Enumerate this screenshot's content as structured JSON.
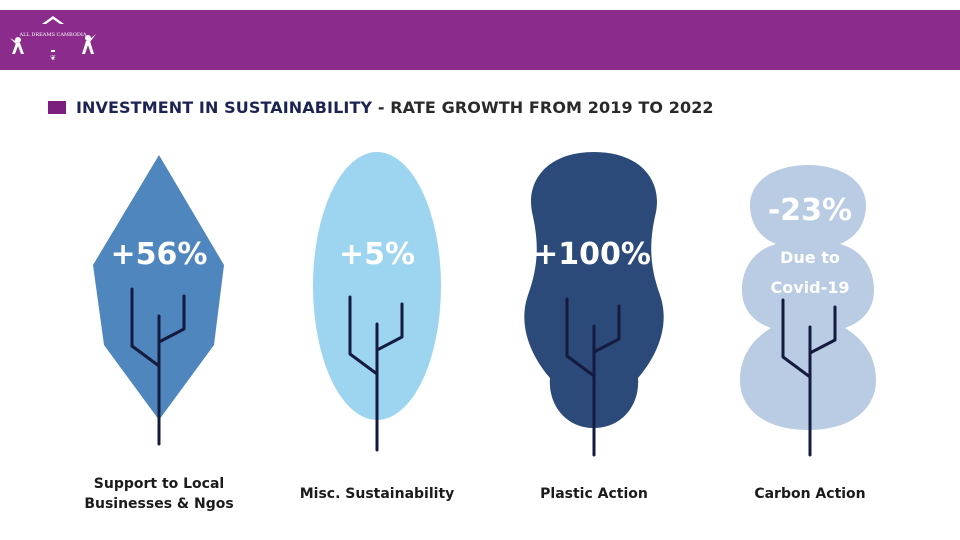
{
  "header": {
    "logo_text": "ALL DREAMS CAMBODIA"
  },
  "title": {
    "main": "INVESTMENT IN SUSTAINABILITY",
    "separator": " - ",
    "rest": "RATE GROWTH FROM 2019 TO 2022"
  },
  "colors": {
    "header": "#8b2b8c",
    "trunk": "#151b3f",
    "leaf_support": "#4f86be",
    "leaf_misc": "#9dd4f0",
    "leaf_plastic": "#2b4a7a",
    "leaf_carbon": "#b9cce3"
  },
  "chart_data": {
    "type": "bar",
    "title": "INVESTMENT IN SUSTAINABILITY - RATE GROWTH FROM 2019 TO 2022",
    "categories": [
      "Support to Local Businesses & Ngos",
      "Misc. Sustainability",
      "Plastic Action",
      "Carbon Action"
    ],
    "category_lines": [
      [
        "Support to Local",
        "Businesses & Ngos"
      ],
      [
        "Misc. Sustainability"
      ],
      [
        "Plastic Action"
      ],
      [
        "Carbon Action"
      ]
    ],
    "values": [
      56,
      5,
      100,
      -23
    ],
    "value_labels": [
      "+56%",
      "+5%",
      "+100%",
      "-23%"
    ],
    "notes": [
      "",
      "",
      "",
      "Due to Covid-19"
    ],
    "note_lines": [
      [],
      [],
      [],
      [
        "Due to",
        "Covid-19"
      ]
    ],
    "unit": "%"
  }
}
